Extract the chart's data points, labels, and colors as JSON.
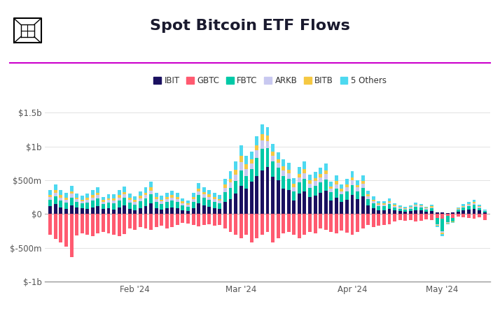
{
  "title": "Spot Bitcoin ETF Flows",
  "title_color": "#1a1a2e",
  "title_fontsize": 16,
  "background_color": "#ffffff",
  "separator_color": "#cc00cc",
  "ylim": [
    -1000,
    1500
  ],
  "yticks": [
    -1000,
    -500,
    0,
    500,
    1000,
    1500
  ],
  "ytick_labels": [
    "$-1b",
    "$-500m",
    "$0",
    "$500m",
    "$1b",
    "$1.5b"
  ],
  "legend": {
    "labels": [
      "IBIT",
      "GBTC",
      "FBTC",
      "ARKB",
      "BITB",
      "5 Others"
    ],
    "colors": [
      "#1a1060",
      "#ff5a70",
      "#00c9a7",
      "#c8c8f0",
      "#f5c842",
      "#4dd9f0"
    ]
  },
  "bar_width": 0.65,
  "month_labels": [
    "Feb '24",
    "Mar '24",
    "Apr '24",
    "May '24"
  ],
  "IBIT": [
    120,
    150,
    100,
    80,
    130,
    100,
    90,
    80,
    100,
    120,
    80,
    90,
    70,
    100,
    130,
    80,
    60,
    90,
    120,
    160,
    90,
    70,
    90,
    100,
    90,
    60,
    50,
    90,
    160,
    130,
    110,
    90,
    80,
    180,
    220,
    300,
    420,
    380,
    480,
    560,
    650,
    700,
    550,
    500,
    380,
    360,
    200,
    300,
    340,
    250,
    270,
    310,
    350,
    200,
    240,
    180,
    210,
    280,
    220,
    260,
    130,
    90,
    60,
    60,
    80,
    55,
    45,
    40,
    45,
    60,
    55,
    40,
    50,
    20,
    30,
    10,
    20,
    40,
    60,
    70,
    80,
    55,
    25
  ],
  "GBTC": [
    -310,
    -370,
    -420,
    -480,
    -640,
    -320,
    -290,
    -310,
    -330,
    -290,
    -260,
    -290,
    -310,
    -330,
    -300,
    -210,
    -230,
    -190,
    -210,
    -230,
    -190,
    -170,
    -210,
    -190,
    -160,
    -130,
    -140,
    -160,
    -180,
    -160,
    -150,
    -170,
    -160,
    -210,
    -260,
    -310,
    -360,
    -310,
    -420,
    -360,
    -310,
    -260,
    -420,
    -360,
    -290,
    -260,
    -310,
    -360,
    -310,
    -260,
    -290,
    -210,
    -230,
    -260,
    -290,
    -240,
    -270,
    -310,
    -260,
    -210,
    -160,
    -190,
    -170,
    -160,
    -150,
    -110,
    -90,
    -100,
    -90,
    -110,
    -100,
    -80,
    -90,
    -60,
    -70,
    -30,
    -60,
    -40,
    -50,
    -60,
    -70,
    -50,
    -90
  ],
  "FBTC": [
    90,
    110,
    100,
    90,
    115,
    80,
    70,
    90,
    100,
    110,
    70,
    80,
    90,
    100,
    110,
    90,
    80,
    100,
    110,
    130,
    90,
    80,
    90,
    100,
    90,
    70,
    60,
    90,
    120,
    110,
    100,
    90,
    80,
    140,
    165,
    185,
    230,
    185,
    185,
    275,
    320,
    275,
    230,
    185,
    185,
    165,
    140,
    165,
    185,
    140,
    150,
    160,
    165,
    120,
    140,
    110,
    130,
    150,
    120,
    130,
    90,
    70,
    55,
    55,
    65,
    45,
    35,
    28,
    35,
    45,
    40,
    30,
    36,
    -90,
    -180,
    -90,
    -45,
    25,
    35,
    45,
    55,
    35,
    18
  ],
  "ARKB": [
    40,
    50,
    45,
    40,
    55,
    38,
    32,
    42,
    46,
    50,
    32,
    38,
    42,
    46,
    50,
    42,
    38,
    46,
    50,
    58,
    42,
    38,
    42,
    46,
    42,
    32,
    28,
    42,
    58,
    50,
    46,
    42,
    38,
    66,
    83,
    100,
    124,
    100,
    83,
    108,
    124,
    108,
    83,
    75,
    83,
    75,
    62,
    75,
    83,
    62,
    66,
    70,
    75,
    54,
    62,
    50,
    58,
    66,
    54,
    58,
    42,
    32,
    24,
    24,
    28,
    20,
    16,
    12,
    16,
    20,
    18,
    14,
    16,
    -16,
    -25,
    -12,
    -8,
    12,
    16,
    20,
    24,
    16,
    8
  ],
  "BITB": [
    35,
    42,
    35,
    32,
    38,
    28,
    24,
    32,
    35,
    38,
    24,
    28,
    32,
    35,
    38,
    32,
    28,
    35,
    38,
    45,
    32,
    28,
    32,
    35,
    32,
    24,
    21,
    32,
    42,
    38,
    35,
    32,
    28,
    48,
    58,
    70,
    90,
    70,
    62,
    76,
    90,
    76,
    62,
    55,
    58,
    55,
    45,
    55,
    62,
    45,
    48,
    52,
    55,
    38,
    45,
    36,
    42,
    48,
    38,
    42,
    28,
    24,
    18,
    18,
    20,
    14,
    12,
    9,
    10,
    14,
    12,
    10,
    11,
    -10,
    -18,
    -7,
    -5,
    8,
    12,
    15,
    17,
    12,
    5
  ],
  "others": [
    70,
    85,
    75,
    68,
    80,
    58,
    54,
    62,
    70,
    75,
    50,
    58,
    62,
    70,
    75,
    62,
    54,
    66,
    75,
    83,
    62,
    54,
    62,
    66,
    62,
    48,
    46,
    58,
    75,
    70,
    65,
    60,
    54,
    91,
    108,
    128,
    150,
    128,
    116,
    132,
    145,
    132,
    108,
    100,
    108,
    100,
    83,
    100,
    112,
    83,
    91,
    95,
    104,
    70,
    83,
    66,
    79,
    91,
    70,
    79,
    54,
    46,
    32,
    32,
    40,
    28,
    24,
    18,
    20,
    26,
    23,
    18,
    21,
    -20,
    -32,
    -14,
    -10,
    16,
    23,
    29,
    31,
    23,
    11
  ]
}
